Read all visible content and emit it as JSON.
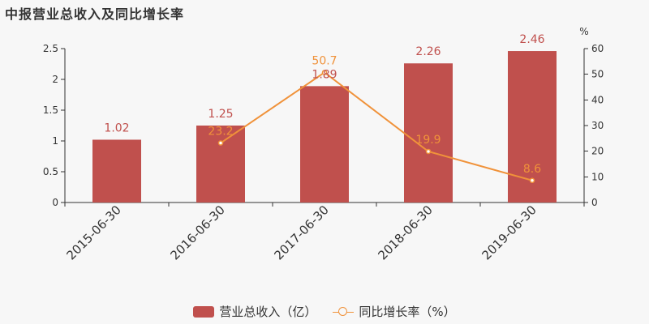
{
  "chart_data": {
    "type": "bar",
    "title": "中报营业总收入及同比增长率",
    "categories": [
      "2015-06-30",
      "2016-06-30",
      "2017-06-30",
      "2018-06-30",
      "2019-06-30"
    ],
    "series": [
      {
        "name": "营业总收入（亿）",
        "type": "bar",
        "axis": "left",
        "color": "#c0504d",
        "values": [
          1.02,
          1.25,
          1.89,
          2.26,
          2.46
        ],
        "labels": [
          "1.02",
          "1.25",
          "1.89",
          "2.26",
          "2.46"
        ]
      },
      {
        "name": "同比增长率（%）",
        "type": "line",
        "axis": "right",
        "color": "#f0923a",
        "values": [
          null,
          23.2,
          50.7,
          19.9,
          8.6
        ],
        "labels": [
          "",
          "23.2",
          "50.7",
          "19.9",
          "8.6"
        ]
      }
    ],
    "y_left": {
      "range": [
        0,
        2.5
      ],
      "ticks": [
        "0",
        "0.5",
        "1",
        "1.5",
        "2",
        "2.5"
      ]
    },
    "y_right": {
      "label": "%",
      "range": [
        0,
        60
      ],
      "ticks": [
        "0",
        "10",
        "20",
        "30",
        "40",
        "50",
        "60"
      ]
    },
    "grid": false,
    "legend_position": "bottom"
  }
}
